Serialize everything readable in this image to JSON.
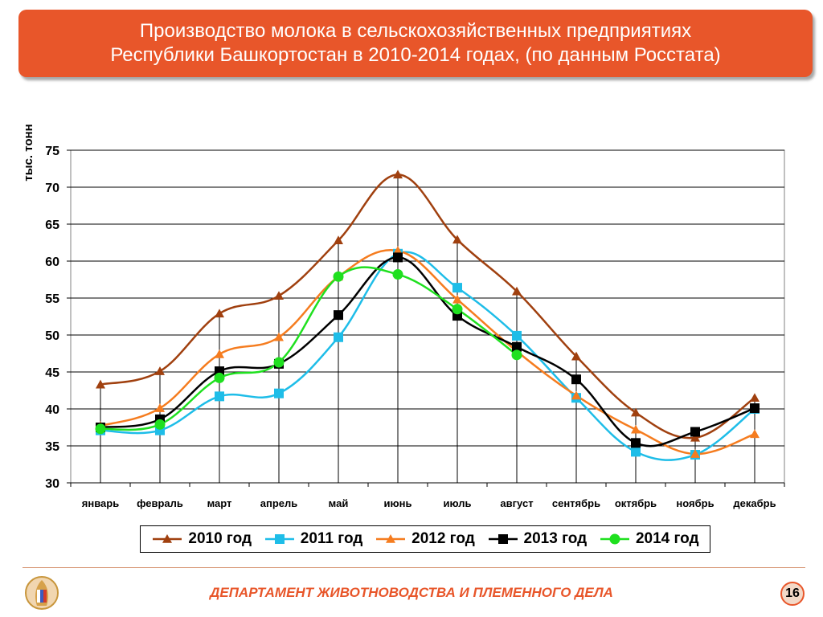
{
  "header": {
    "title_line1": "Производство молока в сельскохозяйственных предприятиях",
    "title_line2": "Республики Башкортостан в 2010-2014 годах, (по данным Росстата)"
  },
  "footer": {
    "department": "ДЕПАРТАМЕНТ ЖИВОТНОВОДСТВА И ПЛЕМЕННОГО ДЕЛА",
    "page_number": "16"
  },
  "colors": {
    "accent": "#e8562a"
  },
  "chart_data": {
    "type": "line",
    "title": "",
    "xlabel": "",
    "ylabel": "тыс. тонн",
    "ylim": [
      30,
      75
    ],
    "yticks": [
      30,
      35,
      40,
      45,
      50,
      55,
      60,
      65,
      70,
      75
    ],
    "grid": true,
    "legend_position": "bottom",
    "categories": [
      "январь",
      "февраль",
      "март",
      "апрель",
      "май",
      "июнь",
      "июль",
      "август",
      "сентябрь",
      "октябрь",
      "ноябрь",
      "декабрь"
    ],
    "series": [
      {
        "name": "2010 год",
        "color": "#a0400f",
        "marker": "triangle",
        "values": [
          43.3,
          45.1,
          52.9,
          55.3,
          62.8,
          71.7,
          62.9,
          55.9,
          47.1,
          39.5,
          36.1,
          41.5
        ]
      },
      {
        "name": "2011 год",
        "color": "#1ebde8",
        "marker": "square",
        "values": [
          37.1,
          37.1,
          41.7,
          42.1,
          49.7,
          61.0,
          56.4,
          49.9,
          41.5,
          34.2,
          33.8,
          40.0
        ]
      },
      {
        "name": "2012 год",
        "color": "#f57c1f",
        "marker": "triangle",
        "values": [
          37.7,
          40.1,
          47.4,
          49.7,
          57.9,
          61.4,
          54.8,
          47.8,
          41.8,
          37.2,
          33.9,
          36.6
        ]
      },
      {
        "name": "2013 год",
        "color": "#000000",
        "marker": "square",
        "values": [
          37.5,
          38.6,
          45.1,
          46.1,
          52.7,
          60.5,
          52.6,
          48.4,
          44.0,
          35.4,
          36.9,
          40.1
        ]
      },
      {
        "name": "2014 год",
        "color": "#1fe01f",
        "marker": "circle",
        "values": [
          37.3,
          37.9,
          44.2,
          46.3,
          57.9,
          58.2,
          53.5,
          47.3,
          null,
          null,
          null,
          null
        ]
      }
    ]
  }
}
